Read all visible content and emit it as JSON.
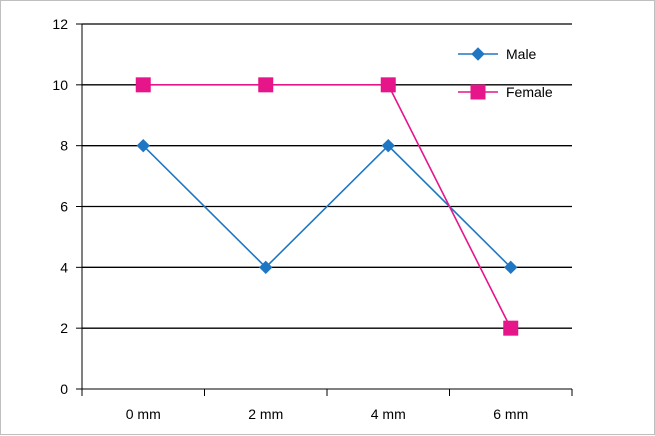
{
  "chart_data": {
    "type": "line",
    "categories": [
      "0 mm",
      "2 mm",
      "4 mm",
      "6 mm"
    ],
    "series": [
      {
        "name": "Male",
        "values": [
          8,
          4,
          8,
          4
        ],
        "color": "#1f77c4",
        "marker": "diamond"
      },
      {
        "name": "Female",
        "values": [
          10,
          10,
          10,
          2
        ],
        "color": "#e6158a",
        "marker": "square"
      }
    ],
    "title": "",
    "xlabel": "",
    "ylabel": "",
    "ylim": [
      0,
      12
    ],
    "yticks": [
      0,
      2,
      4,
      6,
      8,
      10,
      12
    ],
    "grid": true,
    "legend_position": "top-right"
  }
}
